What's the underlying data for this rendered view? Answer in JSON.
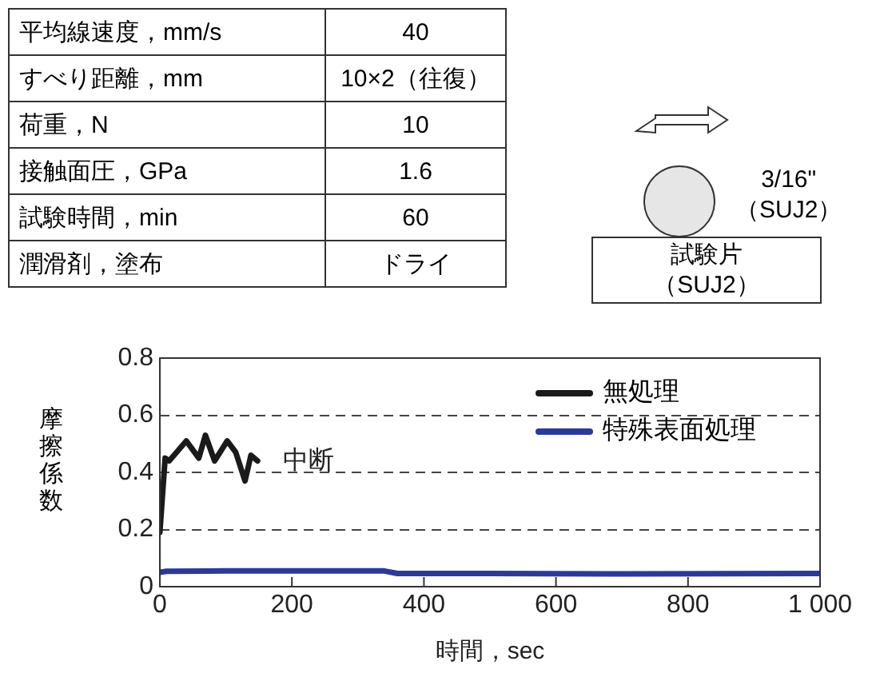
{
  "chart_data": {
    "type": "line",
    "xlabel": "時間，sec",
    "ylabel": "摩擦係数",
    "xlim": [
      0,
      1000
    ],
    "xticks": [
      0,
      200,
      400,
      600,
      800,
      {
        "value": 1000,
        "label": "1 000"
      }
    ],
    "ylim": [
      0,
      0.8
    ],
    "yticks": [
      0,
      0.2,
      0.4,
      0.6,
      0.8
    ],
    "grid": "y",
    "legend": "top right",
    "line_style": "solid",
    "marker": "none",
    "series": [
      {
        "name": "無処理",
        "color": "#1a1a1a",
        "x": [
          0,
          8,
          14,
          40,
          59,
          69,
          83,
          102,
          115,
          129,
          138,
          148
        ],
        "values": [
          0.19,
          0.45,
          0.44,
          0.51,
          0.45,
          0.53,
          0.44,
          0.51,
          0.47,
          0.37,
          0.46,
          0.44
        ]
      },
      {
        "name": "特殊表面処理",
        "color": "#2b3a9a",
        "x": [
          0,
          10,
          100,
          200,
          340,
          360,
          500,
          700,
          1000
        ],
        "values": [
          0.05,
          0.054,
          0.055,
          0.055,
          0.055,
          0.046,
          0.046,
          0.045,
          0.046
        ]
      }
    ],
    "annotations": [
      "中断",
      "平均線速度，mm/s",
      "40",
      "すべり距離，mm",
      "10×2（往復）",
      "荷重，N",
      "10",
      "接触面圧，GPa",
      "1.6",
      "試験時間，min",
      "60",
      "潤滑剤，塗布",
      "ドライ",
      "3/16\"",
      "（SUJ2）",
      "試験片",
      "（SUJ2）"
    ]
  }
}
